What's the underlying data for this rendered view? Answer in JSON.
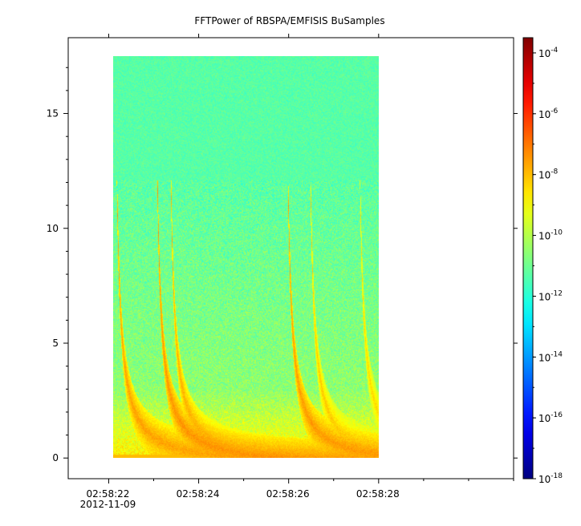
{
  "chart_data": {
    "type": "heatmap",
    "title": "FFTPower of RBSPA/EMFISIS  BuSamples",
    "xlabel": "",
    "ylabel": "",
    "x_range": [
      "02:58:21.1",
      "02:58:31.0"
    ],
    "y_range": [
      -0.9,
      18.3
    ],
    "x_tick_labels": [
      "02:58:22",
      "02:58:24",
      "02:58:26",
      "02:58:28"
    ],
    "x_tick_sublabels": [
      "2012-11-09",
      "",
      "",
      ""
    ],
    "y_ticks": [
      0,
      5,
      10,
      15
    ],
    "y_tick_labels": [
      "0",
      "5",
      "10",
      "15"
    ],
    "data_extent": {
      "x": [
        "02:58:22.1",
        "02:58:28.0"
      ],
      "y": [
        0,
        17.5
      ]
    },
    "colorbar": {
      "scale": "log",
      "range": [
        "1e-18",
        "1e-3.5"
      ],
      "tick_base": "10",
      "tick_exponents": [
        "-18",
        "-16",
        "-14",
        "-12",
        "-10",
        "-8",
        "-6",
        "-4"
      ]
    },
    "log_scale_z": true,
    "grid": false,
    "features": {
      "noise_floor_upper_band_log10_power": -11.3,
      "band_cutoff_freq": 12.1,
      "whistler_tracks": [
        {
          "start_time": "02:58:22.2",
          "log10_power": -7.6
        },
        {
          "start_time": "02:58:23.1",
          "log10_power": -7.4
        },
        {
          "start_time": "02:58:23.4",
          "log10_power": -7.8
        },
        {
          "start_time": "02:58:26.0",
          "log10_power": -7.5
        },
        {
          "start_time": "02:58:26.5",
          "log10_power": -8.2
        },
        {
          "start_time": "02:58:27.6",
          "log10_power": -8.4
        }
      ]
    }
  }
}
